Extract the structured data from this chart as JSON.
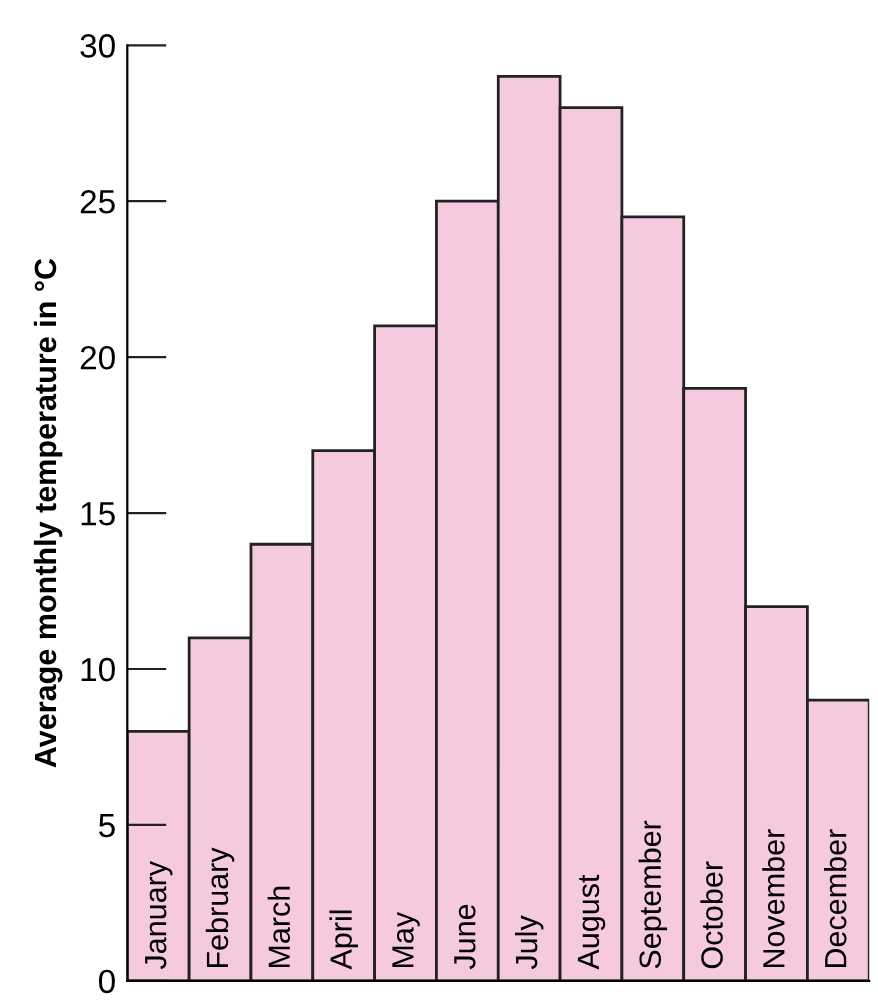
{
  "chart_data": {
    "type": "bar",
    "ylabel": "Average monthly temperature in °C",
    "categories": [
      "January",
      "February",
      "March",
      "April",
      "May",
      "June",
      "July",
      "August",
      "September",
      "October",
      "November",
      "December"
    ],
    "values": [
      8,
      11,
      14,
      17,
      21,
      25,
      29,
      28,
      24.5,
      19,
      12,
      9
    ],
    "color": "#f5c9de",
    "ylim": [
      0,
      30
    ],
    "yticks": [
      0,
      5,
      10,
      15,
      20,
      25,
      30
    ],
    "grid": false,
    "legend": false
  }
}
